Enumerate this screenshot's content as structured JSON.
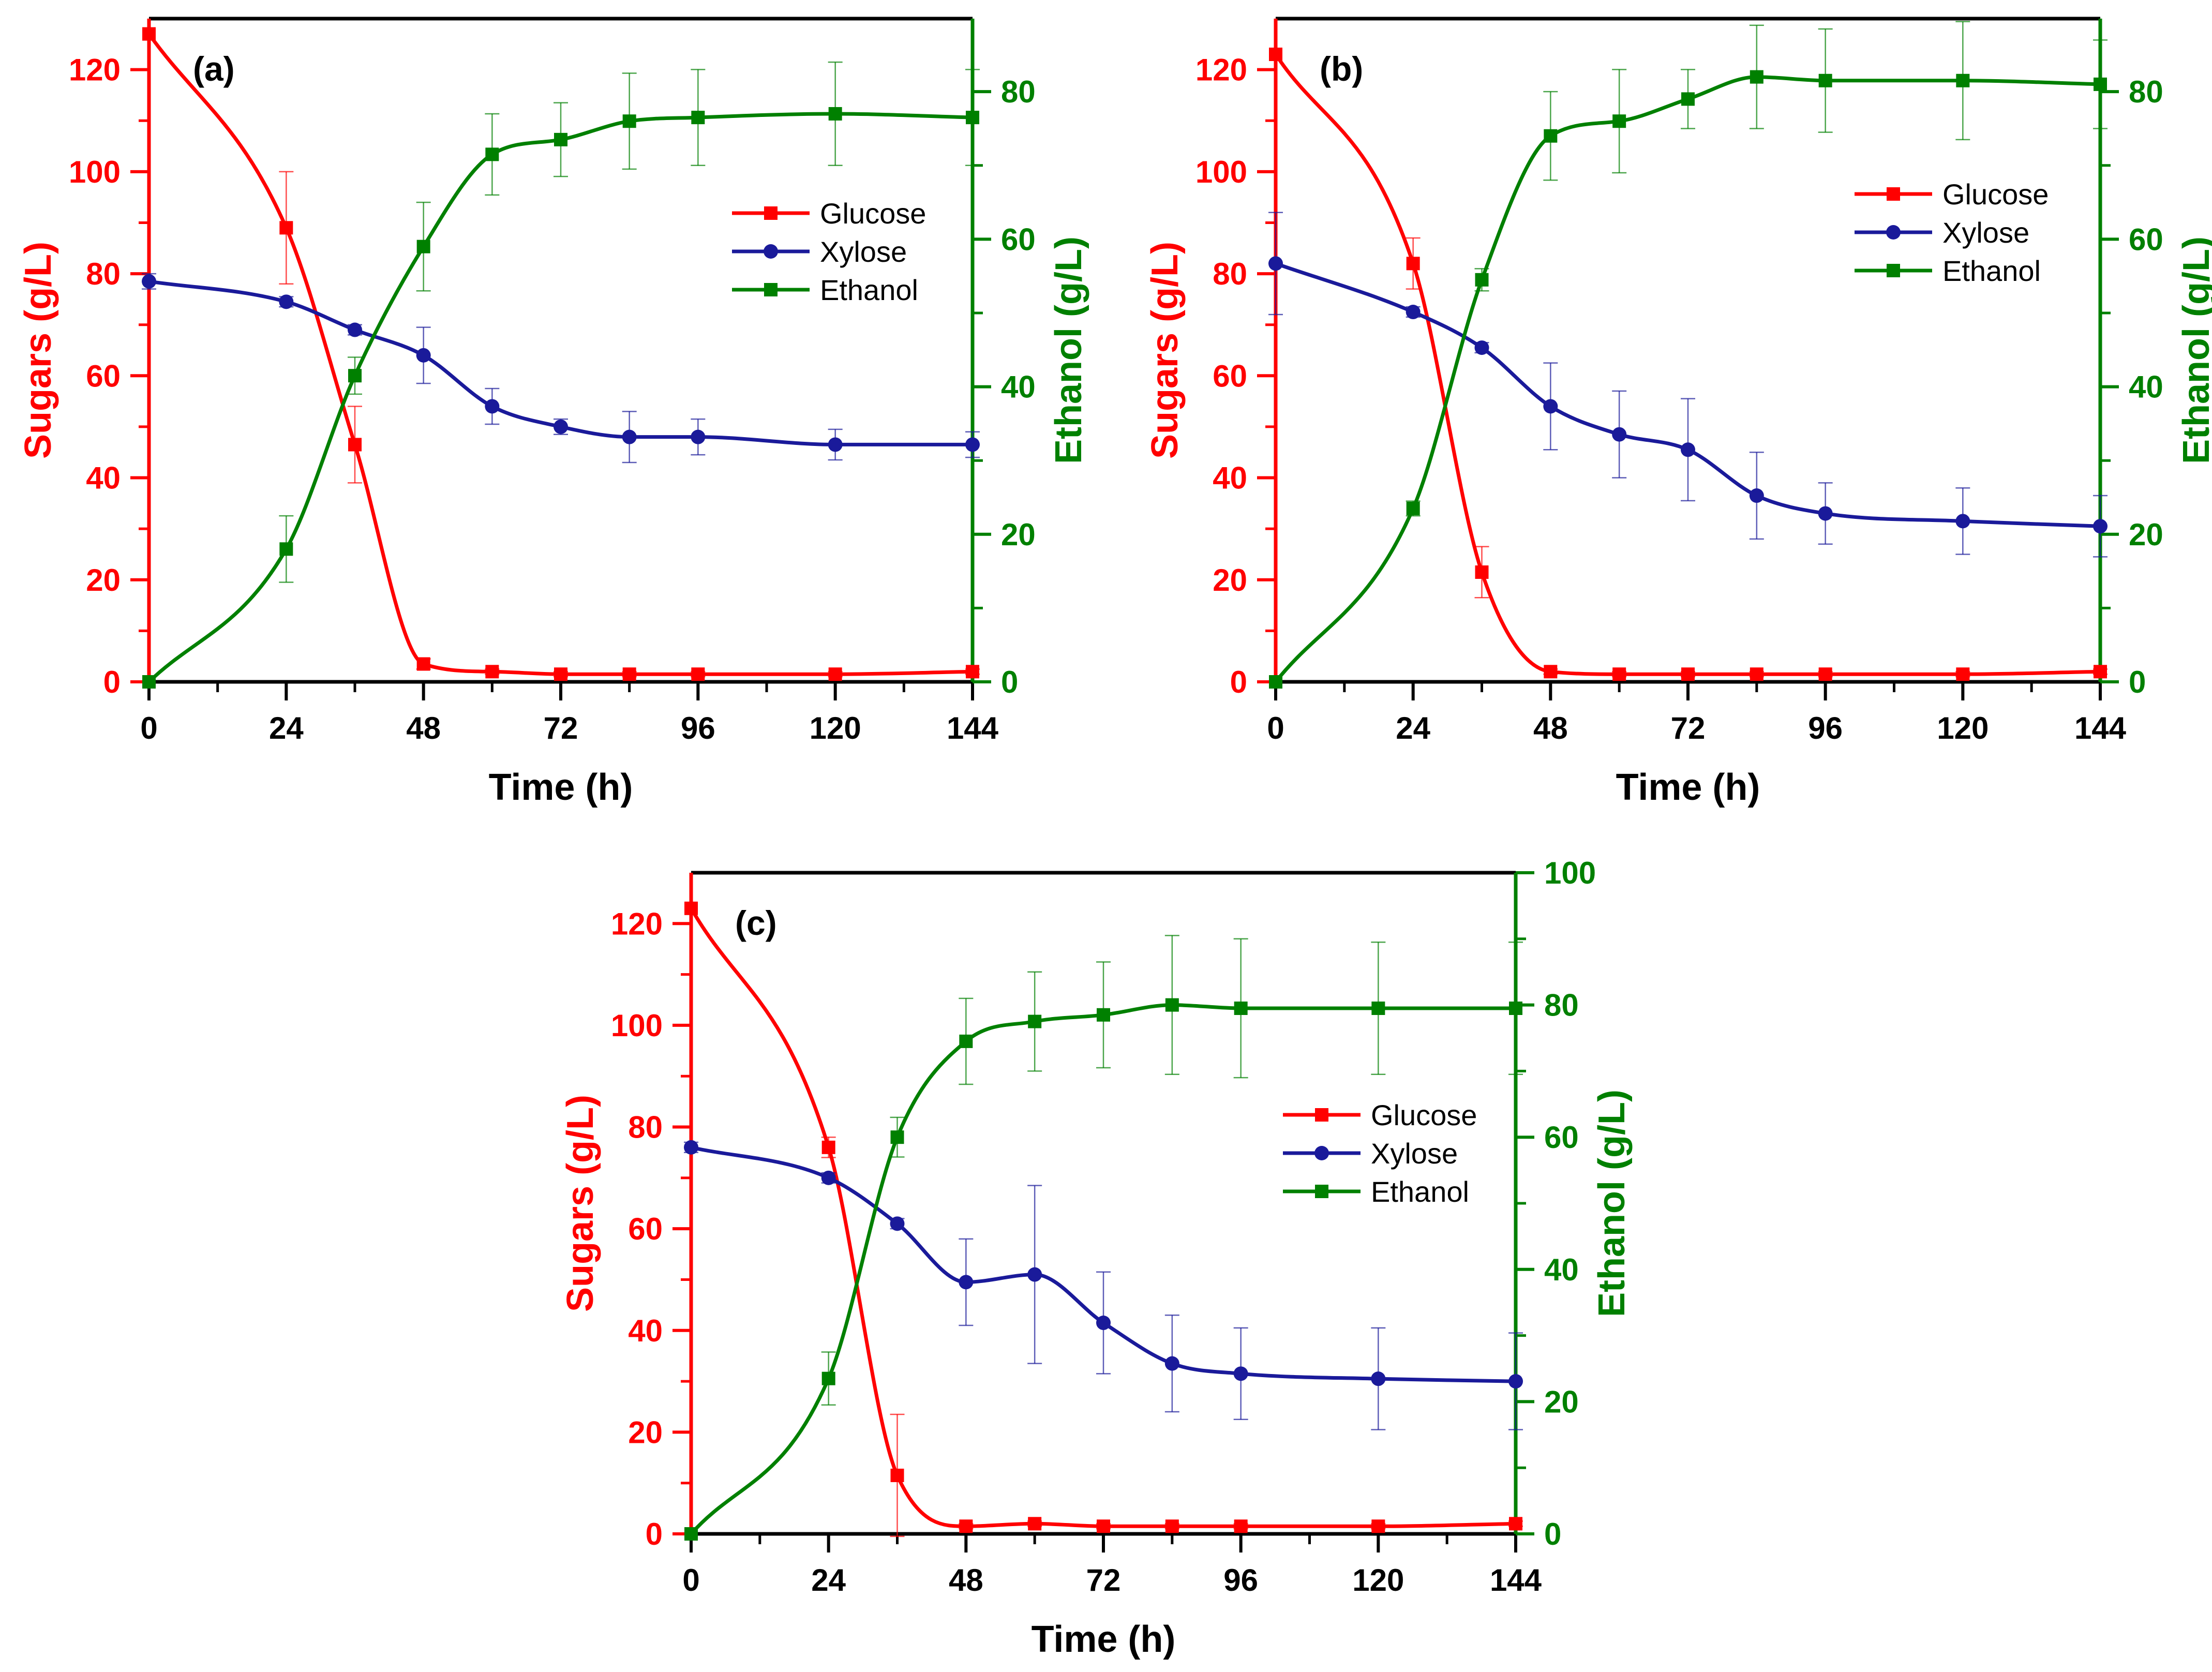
{
  "colors": {
    "glucose": "#ff0000",
    "xylose": "#1a1a9a",
    "ethanol": "#008000",
    "axis": "#000000"
  },
  "chart_data": [
    {
      "type": "line",
      "panel": "(a)",
      "xlabel": "Time (h)",
      "ylabel_left": "Sugars (g/L)",
      "ylabel_right": "Ethanol (g/L)",
      "xlim": [
        0,
        144
      ],
      "ylim_left": [
        0,
        130
      ],
      "ylim_right": [
        0,
        89.9
      ],
      "xticks": [
        0,
        24,
        48,
        72,
        96,
        120,
        144
      ],
      "yticks_left": [
        0,
        20,
        40,
        60,
        80,
        100,
        120
      ],
      "yticks_right": [
        0,
        20,
        40,
        60,
        80
      ],
      "legend": [
        "Glucose",
        "Xylose",
        "Ethanol"
      ],
      "legend_position": "center-right",
      "series": [
        {
          "name": "Glucose",
          "axis": "left",
          "marker": "square",
          "x": [
            0,
            24,
            36,
            48,
            60,
            72,
            84,
            96,
            120,
            144
          ],
          "values": [
            127,
            89,
            46.5,
            3.5,
            2,
            1.5,
            1.5,
            1.5,
            1.5,
            2
          ],
          "errors": [
            0,
            11,
            7.5,
            1,
            0.5,
            0.5,
            0.5,
            0.5,
            0.5,
            0.5
          ]
        },
        {
          "name": "Xylose",
          "axis": "left",
          "marker": "circle",
          "x": [
            0,
            24,
            36,
            48,
            60,
            72,
            84,
            96,
            120,
            144
          ],
          "values": [
            78.5,
            74.5,
            69,
            64,
            54,
            50,
            48,
            48,
            46.5,
            46.5
          ],
          "errors": [
            1.5,
            1,
            1,
            5.5,
            3.5,
            1.5,
            5,
            3.5,
            3,
            2.5
          ]
        },
        {
          "name": "Ethanol",
          "axis": "right",
          "marker": "square",
          "x": [
            0,
            24,
            36,
            48,
            60,
            72,
            84,
            96,
            120,
            144
          ],
          "values": [
            0,
            18,
            41.5,
            59,
            71.5,
            73.5,
            76,
            76.5,
            77,
            76.5
          ],
          "errors": [
            0,
            4.5,
            2.5,
            6,
            5.5,
            5,
            6.5,
            6.5,
            7,
            6.5
          ]
        }
      ]
    },
    {
      "type": "line",
      "panel": "(b)",
      "xlabel": "Time (h)",
      "ylabel_left": "Sugars (g/L)",
      "ylabel_right": "Ethanol (g/L)",
      "xlim": [
        0,
        144
      ],
      "ylim_left": [
        0,
        130
      ],
      "ylim_right": [
        0,
        89.9
      ],
      "xticks": [
        0,
        24,
        48,
        72,
        96,
        120,
        144
      ],
      "yticks_left": [
        0,
        20,
        40,
        60,
        80,
        100,
        120
      ],
      "yticks_right": [
        0,
        20,
        40,
        60,
        80
      ],
      "legend": [
        "Glucose",
        "Xylose",
        "Ethanol"
      ],
      "legend_position": "top-right",
      "series": [
        {
          "name": "Glucose",
          "axis": "left",
          "marker": "square",
          "x": [
            0,
            24,
            36,
            48,
            60,
            72,
            84,
            96,
            120,
            144
          ],
          "values": [
            123,
            82,
            21.5,
            2,
            1.5,
            1.5,
            1.5,
            1.5,
            1.5,
            2
          ],
          "errors": [
            0,
            5,
            5,
            0.5,
            0.5,
            0.5,
            0.5,
            0.5,
            0.5,
            0.5
          ]
        },
        {
          "name": "Xylose",
          "axis": "left",
          "marker": "circle",
          "x": [
            0,
            24,
            36,
            48,
            60,
            72,
            84,
            96,
            120,
            144
          ],
          "values": [
            82,
            72.5,
            65.5,
            54,
            48.5,
            45.5,
            36.5,
            33,
            31.5,
            30.5
          ],
          "errors": [
            10,
            1,
            1,
            8.5,
            8.5,
            10,
            8.5,
            6,
            6.5,
            6
          ]
        },
        {
          "name": "Ethanol",
          "axis": "right",
          "marker": "square",
          "x": [
            0,
            24,
            36,
            48,
            60,
            72,
            84,
            96,
            120,
            144
          ],
          "values": [
            0,
            23.5,
            54.5,
            74,
            76,
            79,
            82,
            81.5,
            81.5,
            81
          ],
          "errors": [
            0,
            1,
            1.5,
            6,
            7,
            4,
            7,
            7,
            8,
            6
          ]
        }
      ]
    },
    {
      "type": "line",
      "panel": "(c)",
      "xlabel": "Time (h)",
      "ylabel_left": "Sugars (g/L)",
      "ylabel_right": "Ethanol (g/L)",
      "xlim": [
        0,
        144
      ],
      "ylim_left": [
        0,
        130
      ],
      "ylim_right": [
        0,
        100
      ],
      "xticks": [
        0,
        24,
        48,
        72,
        96,
        120,
        144
      ],
      "yticks_left": [
        0,
        20,
        40,
        60,
        80,
        100,
        120
      ],
      "yticks_right": [
        0,
        20,
        40,
        60,
        80,
        100
      ],
      "legend": [
        "Glucose",
        "Xylose",
        "Ethanol"
      ],
      "legend_position": "center-right",
      "series": [
        {
          "name": "Glucose",
          "axis": "left",
          "marker": "square",
          "x": [
            0,
            24,
            36,
            48,
            60,
            72,
            84,
            96,
            120,
            144
          ],
          "values": [
            123,
            76,
            11.5,
            1.5,
            2,
            1.5,
            1.5,
            1.5,
            1.5,
            2
          ],
          "errors": [
            0,
            2,
            12,
            0.5,
            0.5,
            0.5,
            0.5,
            0.5,
            0.5,
            0.5
          ]
        },
        {
          "name": "Xylose",
          "axis": "left",
          "marker": "circle",
          "x": [
            0,
            24,
            36,
            48,
            60,
            72,
            84,
            96,
            120,
            144
          ],
          "values": [
            76,
            70,
            61,
            49.5,
            51,
            41.5,
            33.5,
            31.5,
            30.5,
            30
          ],
          "errors": [
            1,
            1,
            1,
            8.5,
            17.5,
            10,
            9.5,
            9,
            10,
            9.5
          ]
        },
        {
          "name": "Ethanol",
          "axis": "right",
          "marker": "square",
          "x": [
            0,
            24,
            36,
            48,
            60,
            72,
            84,
            96,
            120,
            144
          ],
          "values": [
            0,
            23.5,
            60,
            74.5,
            77.5,
            78.5,
            80,
            79.5,
            79.5,
            79.5
          ],
          "errors": [
            0,
            4,
            3,
            6.5,
            7.5,
            8,
            10.5,
            10.5,
            10,
            10
          ]
        }
      ]
    }
  ]
}
